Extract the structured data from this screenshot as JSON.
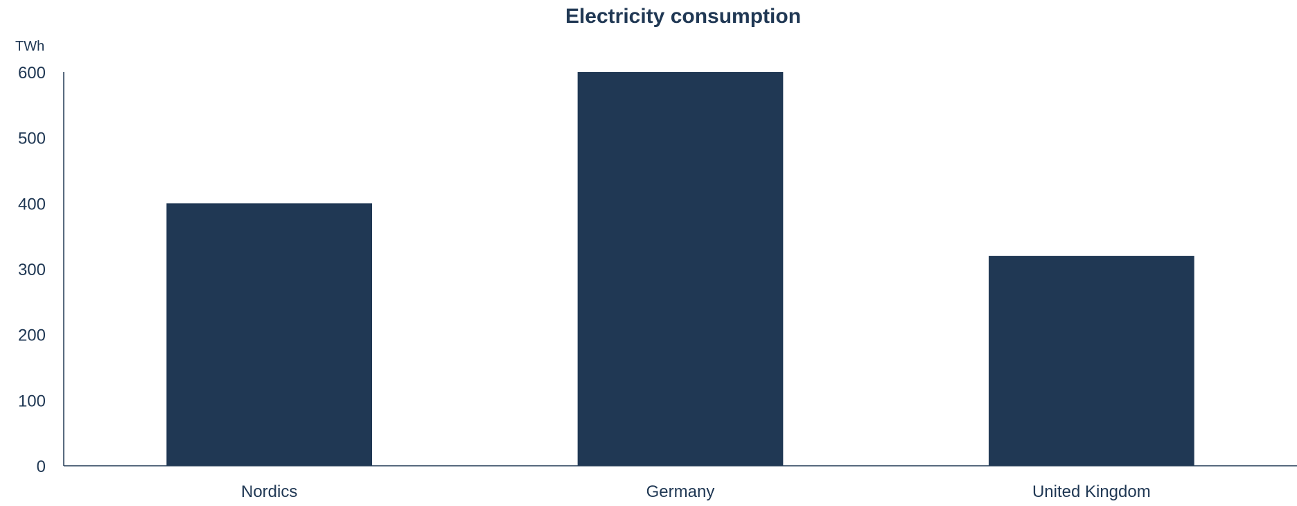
{
  "chart_data": {
    "type": "bar",
    "title": "Electricity consumption",
    "ylabel": "TWh",
    "xlabel": "",
    "categories": [
      "Nordics",
      "Germany",
      "United Kingdom"
    ],
    "values": [
      400,
      600,
      320
    ],
    "ylim": [
      0,
      600
    ],
    "yticks": [
      0,
      100,
      200,
      300,
      400,
      500,
      600
    ],
    "grid": false,
    "legend": "none"
  },
  "colors": {
    "bar": "#203854",
    "text": "#203854",
    "axis": "#203854"
  }
}
